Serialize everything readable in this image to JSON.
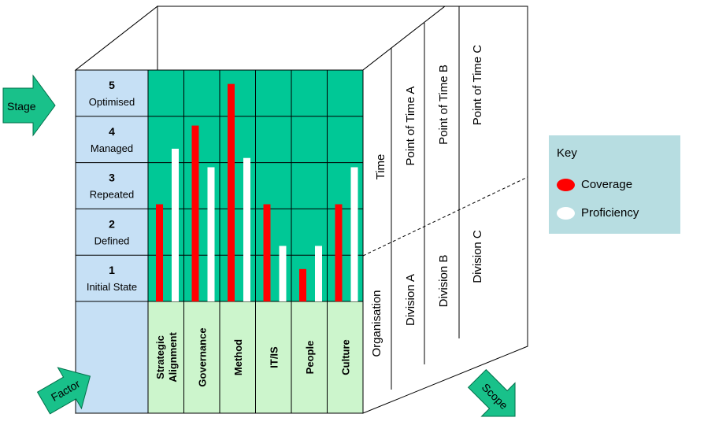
{
  "stages": [
    {
      "num": "5",
      "name": "Optimised"
    },
    {
      "num": "4",
      "name": "Managed"
    },
    {
      "num": "3",
      "name": "Repeated"
    },
    {
      "num": "2",
      "name": "Defined"
    },
    {
      "num": "1",
      "name": "Initial State"
    }
  ],
  "factors": [
    {
      "lines": [
        "Strategic",
        "Alignment"
      ]
    },
    {
      "lines": [
        "Governance"
      ]
    },
    {
      "lines": [
        "Method"
      ]
    },
    {
      "lines": [
        "IT/IS"
      ]
    },
    {
      "lines": [
        "People"
      ]
    },
    {
      "lines": [
        "Culture"
      ]
    }
  ],
  "arrows": {
    "stage": "Stage",
    "factor": "Factor",
    "scope": "Scope"
  },
  "side": {
    "time_header": "Time",
    "org_header": "Organisation",
    "time_points": [
      "Point of Time A",
      "Point of Time B",
      "Point of Time C"
    ],
    "divisions": [
      "Division A",
      "Division B",
      "Division C"
    ]
  },
  "key": {
    "title": "Key",
    "coverage_label": "Coverage",
    "proficiency_label": "Proficiency",
    "coverage_color": "#ff0000",
    "proficiency_color": "#ffffff"
  },
  "colors": {
    "grid_green": "#00c896",
    "stage_blue": "#c6e0f5",
    "factor_green": "#ccf5cc",
    "arrow_green": "#19c18a"
  },
  "chart_data": {
    "type": "bar",
    "categories": [
      "Strategic Alignment",
      "Governance",
      "Method",
      "IT/IS",
      "People",
      "Culture"
    ],
    "series": [
      {
        "name": "Coverage",
        "values": [
          2.1,
          3.8,
          4.7,
          2.1,
          0.7,
          2.1
        ]
      },
      {
        "name": "Proficiency",
        "values": [
          3.3,
          2.9,
          3.1,
          1.2,
          1.2,
          2.9
        ]
      }
    ],
    "ylim": [
      0,
      5
    ]
  }
}
